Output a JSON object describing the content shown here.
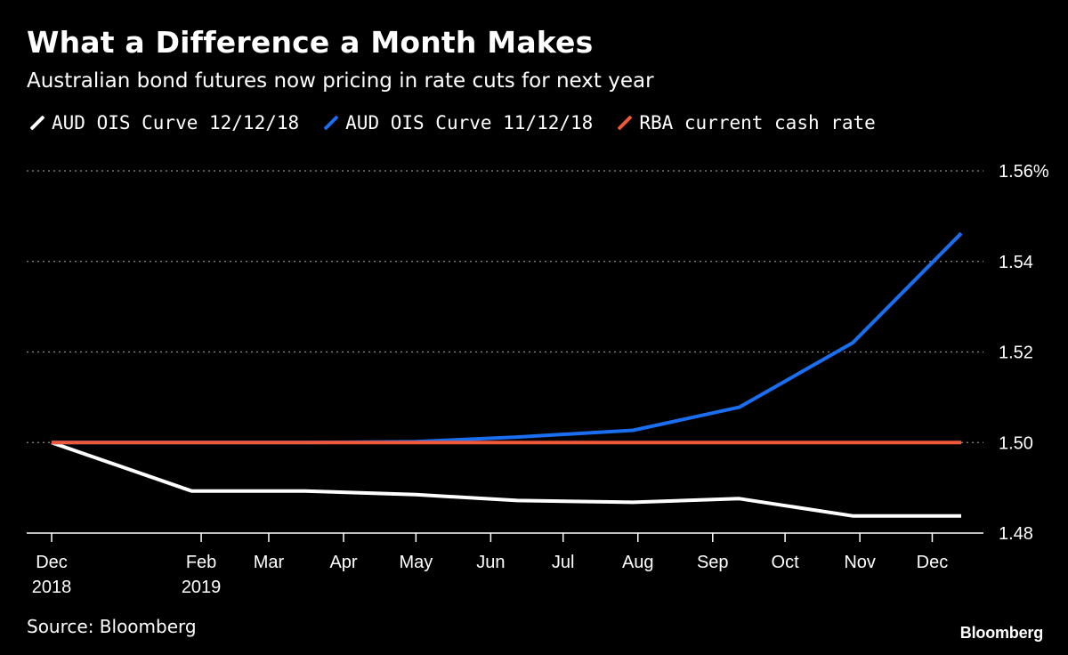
{
  "title": "What a Difference a Month Makes",
  "subtitle": "Australian bond futures now pricing in rate cuts for next year",
  "source": "Source: Bloomberg",
  "brand": "Bloomberg",
  "legend": [
    {
      "label": "AUD OIS Curve 12/12/18",
      "color": "#ffffff"
    },
    {
      "label": "AUD OIS Curve 11/12/18",
      "color": "#1a6ef0"
    },
    {
      "label": "RBA current cash rate",
      "color": "#f0583a"
    }
  ],
  "chart_data": {
    "type": "line",
    "title": "What a Difference a Month Makes",
    "subtitle": "Australian bond futures now pricing in rate cuts for next year",
    "x_ticks": [
      {
        "label": "Dec",
        "label2": "2018",
        "date": "2018-12-01"
      },
      {
        "label": "Feb",
        "label2": "2019",
        "date": "2019-02-01"
      },
      {
        "label": "Mar",
        "label2": "",
        "date": "2019-03-01"
      },
      {
        "label": "Apr",
        "label2": "",
        "date": "2019-04-01"
      },
      {
        "label": "May",
        "label2": "",
        "date": "2019-05-01"
      },
      {
        "label": "Jun",
        "label2": "",
        "date": "2019-06-01"
      },
      {
        "label": "Jul",
        "label2": "",
        "date": "2019-07-01"
      },
      {
        "label": "Aug",
        "label2": "",
        "date": "2019-08-01"
      },
      {
        "label": "Sep",
        "label2": "",
        "date": "2019-09-01"
      },
      {
        "label": "Oct",
        "label2": "",
        "date": "2019-10-01"
      },
      {
        "label": "Nov",
        "label2": "",
        "date": "2019-11-01"
      },
      {
        "label": "Dec",
        "label2": "",
        "date": "2019-12-01"
      }
    ],
    "y_ticks": [
      {
        "value": 1.48,
        "label": "1.48"
      },
      {
        "value": 1.5,
        "label": "1.50"
      },
      {
        "value": 1.52,
        "label": "1.52"
      },
      {
        "value": 1.54,
        "label": "1.54"
      },
      {
        "value": 1.56,
        "label": "1.56%"
      }
    ],
    "ylim": [
      1.48,
      1.56
    ],
    "xlim": [
      "2018-12-01",
      "2019-12-13"
    ],
    "grid": true,
    "legend_position": "top-left",
    "series": [
      {
        "name": "AUD OIS Curve 12/12/18",
        "color": "#ffffff",
        "points": [
          [
            "2018-12-01",
            1.5
          ],
          [
            "2019-01-28",
            1.4893
          ],
          [
            "2019-03-16",
            1.4893
          ],
          [
            "2019-05-01",
            1.4885
          ],
          [
            "2019-06-12",
            1.4872
          ],
          [
            "2019-07-30",
            1.4868
          ],
          [
            "2019-09-12",
            1.4876
          ],
          [
            "2019-10-29",
            1.4838
          ],
          [
            "2019-12-13",
            1.4838
          ]
        ]
      },
      {
        "name": "AUD OIS Curve 11/12/18",
        "color": "#1a6ef0",
        "points": [
          [
            "2018-12-01",
            1.5
          ],
          [
            "2019-01-28",
            1.5
          ],
          [
            "2019-03-16",
            1.5
          ],
          [
            "2019-05-01",
            1.5002
          ],
          [
            "2019-06-12",
            1.5012
          ],
          [
            "2019-07-30",
            1.5027
          ],
          [
            "2019-09-12",
            1.5078
          ],
          [
            "2019-10-29",
            1.522
          ],
          [
            "2019-12-13",
            1.5462
          ]
        ]
      },
      {
        "name": "RBA current cash rate",
        "color": "#f0583a",
        "points": [
          [
            "2018-12-01",
            1.5
          ],
          [
            "2019-12-13",
            1.5
          ]
        ]
      }
    ]
  }
}
